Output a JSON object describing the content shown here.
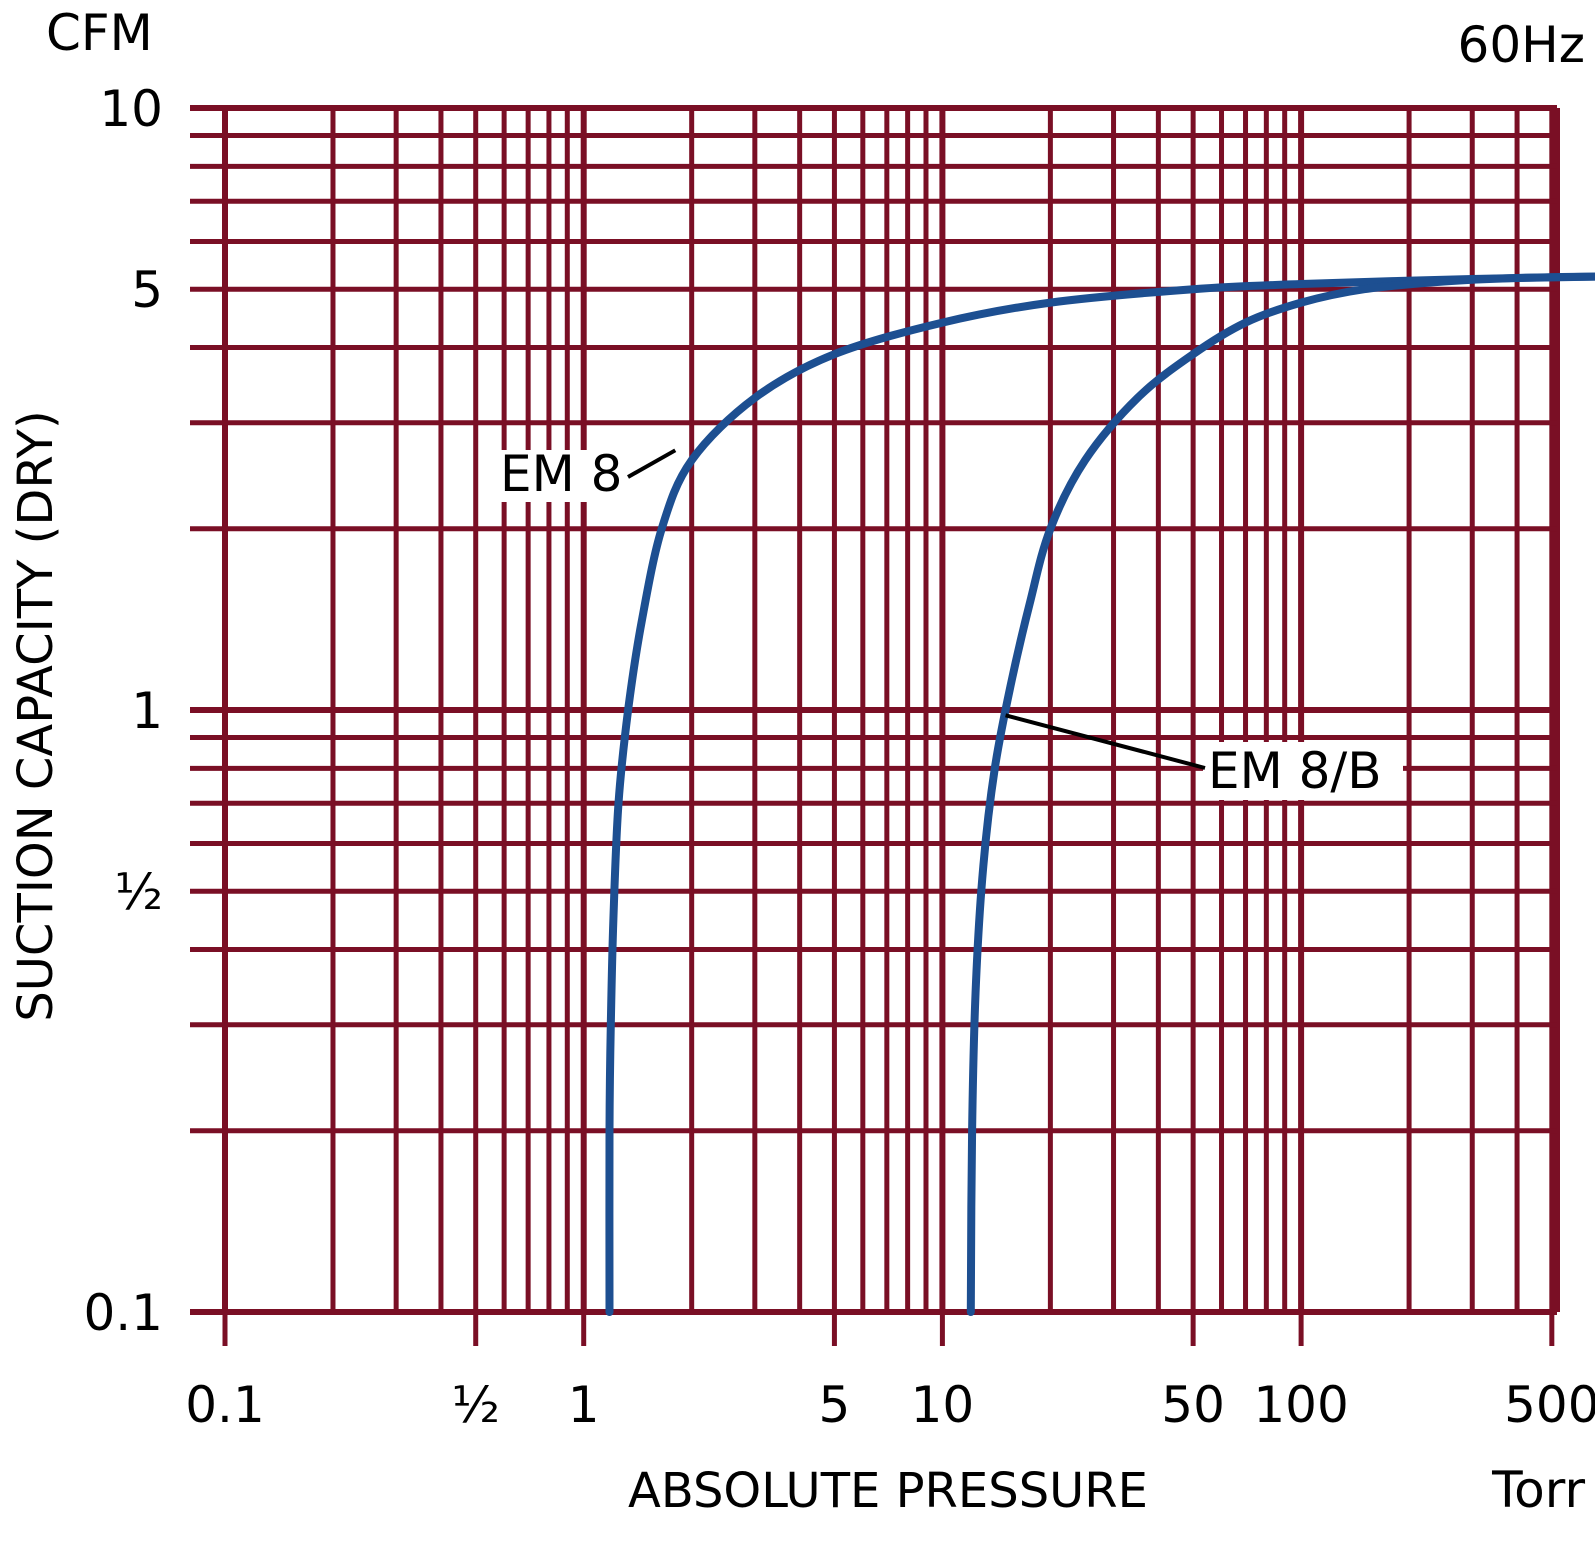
{
  "chart_data": {
    "type": "line",
    "title": "",
    "frequency_label": "60Hz",
    "xlabel": "ABSOLUTE PRESSURE",
    "x_unit": "Torr",
    "ylabel": "SUCTION CAPACITY (DRY)",
    "y_unit": "CFM",
    "x_scale": "log",
    "y_scale": "log",
    "xlim": [
      0.1,
      700
    ],
    "ylim": [
      0.1,
      10
    ],
    "grid": true,
    "x_ticks": [
      {
        "value": 0.1,
        "label": "0.1"
      },
      {
        "value": 0.5,
        "label": "½"
      },
      {
        "value": 1,
        "label": "1"
      },
      {
        "value": 5,
        "label": "5"
      },
      {
        "value": 10,
        "label": "10"
      },
      {
        "value": 50,
        "label": "50"
      },
      {
        "value": 100,
        "label": "100"
      },
      {
        "value": 500,
        "label": "500"
      }
    ],
    "y_ticks": [
      {
        "value": 0.1,
        "label": "0.1"
      },
      {
        "value": 0.5,
        "label": "½"
      },
      {
        "value": 1,
        "label": "1"
      },
      {
        "value": 5,
        "label": "5"
      },
      {
        "value": 10,
        "label": "10"
      }
    ],
    "series": [
      {
        "name": "EM 8",
        "label_anchor": {
          "x": 1.8,
          "y": 2.7
        },
        "points": [
          {
            "x": 1.18,
            "y": 0.1
          },
          {
            "x": 1.18,
            "y": 0.2
          },
          {
            "x": 1.19,
            "y": 0.3
          },
          {
            "x": 1.21,
            "y": 0.45
          },
          {
            "x": 1.25,
            "y": 0.7
          },
          {
            "x": 1.33,
            "y": 1.0
          },
          {
            "x": 1.45,
            "y": 1.4
          },
          {
            "x": 1.65,
            "y": 2.0
          },
          {
            "x": 2.0,
            "y": 2.6
          },
          {
            "x": 3.0,
            "y": 3.3
          },
          {
            "x": 5.0,
            "y": 3.9
          },
          {
            "x": 10.0,
            "y": 4.4
          },
          {
            "x": 20.0,
            "y": 4.75
          },
          {
            "x": 50.0,
            "y": 5.0
          },
          {
            "x": 100.0,
            "y": 5.1
          },
          {
            "x": 300.0,
            "y": 5.2
          },
          {
            "x": 700.0,
            "y": 5.25
          }
        ]
      },
      {
        "name": "EM 8/B",
        "label_anchor": {
          "x": 15.0,
          "y": 0.98
        },
        "points": [
          {
            "x": 12.0,
            "y": 0.1
          },
          {
            "x": 12.1,
            "y": 0.2
          },
          {
            "x": 12.4,
            "y": 0.35
          },
          {
            "x": 13.0,
            "y": 0.55
          },
          {
            "x": 14.0,
            "y": 0.8
          },
          {
            "x": 15.5,
            "y": 1.1
          },
          {
            "x": 17.5,
            "y": 1.5
          },
          {
            "x": 20.0,
            "y": 2.0
          },
          {
            "x": 25.0,
            "y": 2.6
          },
          {
            "x": 35.0,
            "y": 3.3
          },
          {
            "x": 50.0,
            "y": 3.9
          },
          {
            "x": 70.0,
            "y": 4.4
          },
          {
            "x": 100.0,
            "y": 4.75
          },
          {
            "x": 150.0,
            "y": 5.0
          },
          {
            "x": 250.0,
            "y": 5.15
          },
          {
            "x": 400.0,
            "y": 5.22
          },
          {
            "x": 700.0,
            "y": 5.25
          }
        ]
      }
    ],
    "colors": {
      "grid": "#7a0f25",
      "series": "#1d4f91",
      "leader": "#000000"
    }
  }
}
